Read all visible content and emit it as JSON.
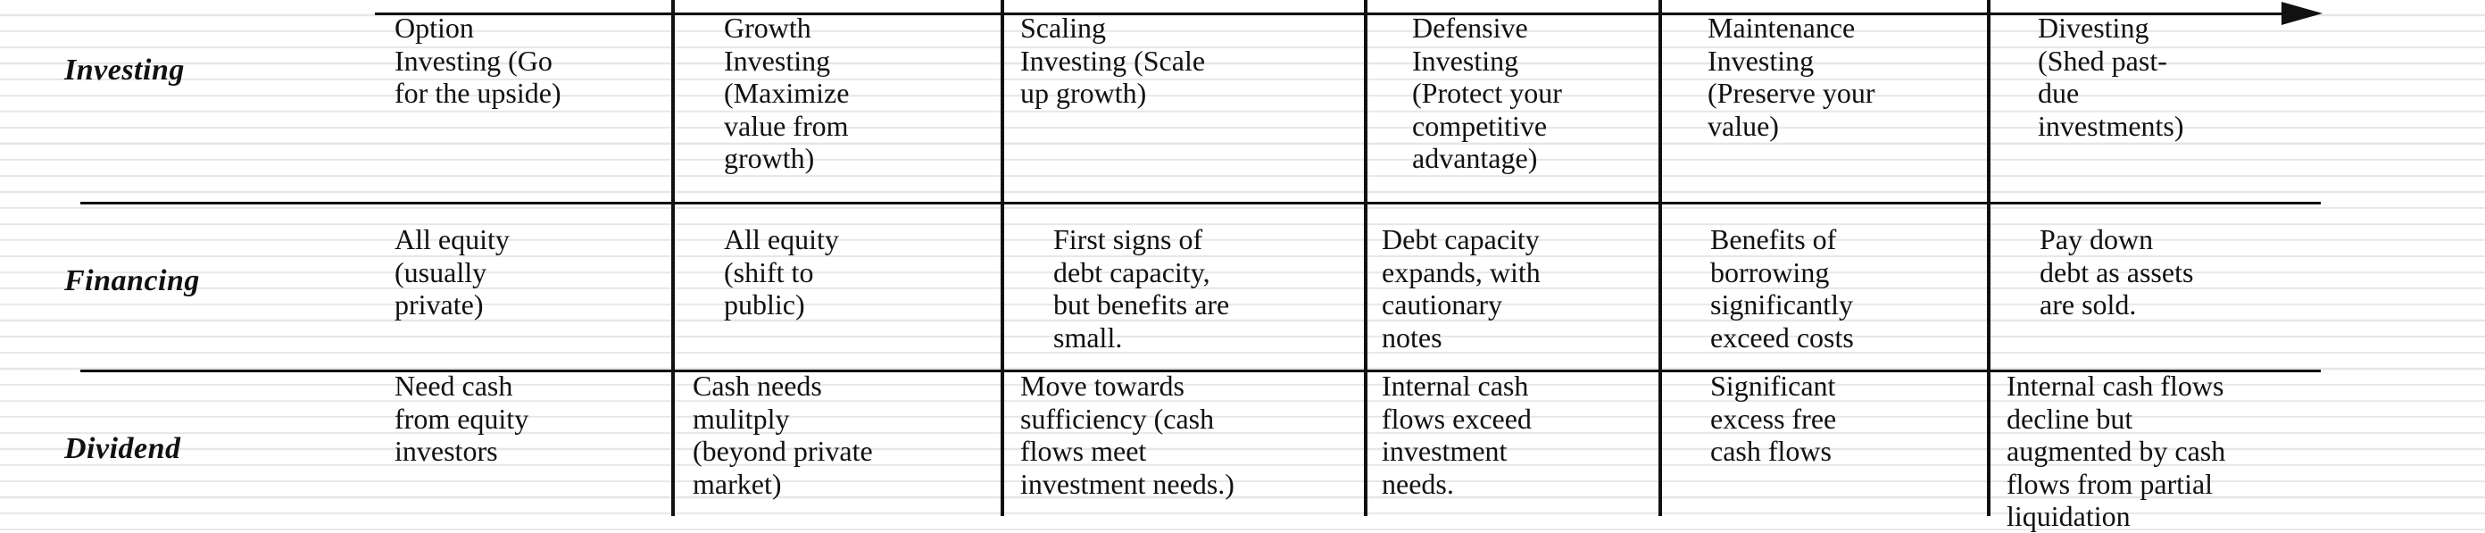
{
  "rows": [
    {
      "label": "Investing",
      "cells": [
        "Option\nInvesting (Go\nfor the upside)",
        "Growth\nInvesting\n(Maximize\nvalue from\ngrowth)",
        "Scaling\nInvesting (Scale\nup growth)",
        "Defensive\nInvesting\n(Protect your\ncompetitive\nadvantage)",
        "Maintenance\nInvesting\n(Preserve your\nvalue)",
        "Divesting\n(Shed past-\ndue\ninvestments)"
      ]
    },
    {
      "label": "Financing",
      "cells": [
        "All equity\n(usually\nprivate)",
        "All equity\n(shift to\npublic)",
        "First signs of\ndebt capacity,\nbut benefits are\nsmall.",
        "Debt capacity\nexpands, with\ncautionary\nnotes",
        "Benefits of\nborrowing\nsignificantly\nexceed costs",
        "Pay down\ndebt as assets\nare sold."
      ]
    },
    {
      "label": "Dividend",
      "cells": [
        "Need cash\nfrom equity\ninvestors",
        "Cash needs\nmulitply\n(beyond private\nmarket)",
        "Move towards\nsufficiency (cash\nflows meet\ninvestment needs.)",
        "Internal cash\nflows exceed\ninvestment\nneeds.",
        "Significant\nexcess free\ncash flows",
        "Internal cash flows\ndecline but\naugmented by cash\nflows from partial\nliquidation"
      ]
    }
  ]
}
